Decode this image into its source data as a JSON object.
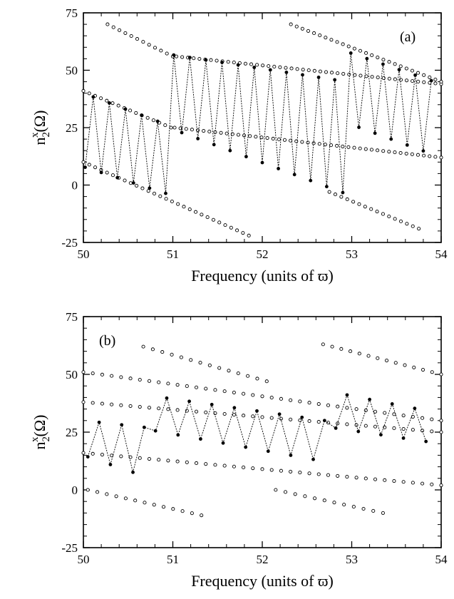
{
  "chart_data": [
    {
      "type": "scatter",
      "panel_label": "(a)",
      "xlabel": "Frequency (units of ϖ)",
      "ylabel_base": "n",
      "ylabel_sub": "2",
      "ylabel_sup": "x",
      "ylabel_arg": "(Ω)",
      "xlim": [
        50,
        54
      ],
      "ylim": [
        -25,
        75
      ],
      "xticks": [
        50,
        51,
        52,
        53,
        54
      ],
      "yticks": [
        -25,
        0,
        25,
        50,
        75
      ],
      "series": [
        {
          "style": "open",
          "x": [
            50.27,
            51.0
          ],
          "y": [
            70,
            56
          ]
        },
        {
          "style": "open",
          "x": [
            51.04,
            54.0
          ],
          "y": [
            56,
            44
          ]
        },
        {
          "style": "open",
          "x": [
            52.32,
            54.0
          ],
          "y": [
            70,
            45
          ]
        },
        {
          "style": "open",
          "x": [
            50.0,
            50.98
          ],
          "y": [
            41,
            25
          ]
        },
        {
          "style": "open",
          "x": [
            51.02,
            54.0
          ],
          "y": [
            25,
            12
          ]
        },
        {
          "style": "open",
          "x": [
            50.0,
            51.85
          ],
          "y": [
            10,
            -22
          ]
        },
        {
          "style": "open",
          "x": [
            52.75,
            53.75
          ],
          "y": [
            -3,
            -19
          ]
        },
        {
          "style": "filled_zigzag",
          "x_start": 50.02,
          "step": 0.09,
          "count": 44,
          "peaks": [
            {
              "x": [
                50.0,
                50.95
              ],
              "y": [
                40,
                26
              ]
            },
            {
              "x": [
                50.95,
                52.95
              ],
              "y": [
                57,
                45
              ]
            },
            {
              "x": [
                52.95,
                54.0
              ],
              "y": [
                58,
                44
              ]
            }
          ],
          "troughs": [
            {
              "x": [
                50.0,
                50.95
              ],
              "y": [
                8,
                -4
              ]
            },
            {
              "x": [
                50.95,
                52.95
              ],
              "y": [
                25,
                -4
              ]
            },
            {
              "x": [
                52.95,
                54.0
              ],
              "y": [
                27,
                12
              ]
            }
          ]
        }
      ]
    },
    {
      "type": "scatter",
      "panel_label": "(b)",
      "xlabel": "Frequency (units of ϖ)",
      "ylabel_base": "n",
      "ylabel_sub": "2",
      "ylabel_sup": "x",
      "ylabel_arg": "(Ω)",
      "xlim": [
        50,
        54
      ],
      "ylim": [
        -25,
        75
      ],
      "xticks": [
        50,
        51,
        52,
        53,
        54
      ],
      "yticks": [
        -25,
        0,
        25,
        50,
        75
      ],
      "series": [
        {
          "style": "open",
          "x": [
            50.67,
            52.05
          ],
          "y": [
            62,
            47
          ]
        },
        {
          "style": "open",
          "x": [
            52.68,
            54.0
          ],
          "y": [
            63,
            50
          ]
        },
        {
          "style": "open",
          "x": [
            50.0,
            54.0
          ],
          "y": [
            51,
            30
          ]
        },
        {
          "style": "open",
          "x": [
            50.0,
            54.0
          ],
          "y": [
            38,
            25
          ]
        },
        {
          "style": "open",
          "x": [
            50.0,
            54.0
          ],
          "y": [
            16,
            2
          ]
        },
        {
          "style": "open",
          "x": [
            50.05,
            51.32
          ],
          "y": [
            0,
            -11
          ]
        },
        {
          "style": "open",
          "x": [
            52.15,
            53.35
          ],
          "y": [
            0,
            -10
          ]
        },
        {
          "style": "filled_zigzag",
          "x_start": 50.05,
          "step": 0.126,
          "count": 31,
          "peaks": [
            {
              "x": [
                50.0,
                50.7
              ],
              "y": [
                30,
                27
              ]
            },
            {
              "x": [
                50.7,
                52.7
              ],
              "y": [
                41,
                30
              ]
            },
            {
              "x": [
                52.7,
                54.0
              ],
              "y": [
                43,
                33
              ]
            }
          ],
          "troughs": [
            {
              "x": [
                50.0,
                50.6
              ],
              "y": [
                15,
                7
              ]
            },
            {
              "x": [
                50.6,
                52.6
              ],
              "y": [
                27,
                13
              ]
            },
            {
              "x": [
                52.6,
                54.0
              ],
              "y": [
                28,
                20
              ]
            }
          ]
        }
      ]
    }
  ]
}
